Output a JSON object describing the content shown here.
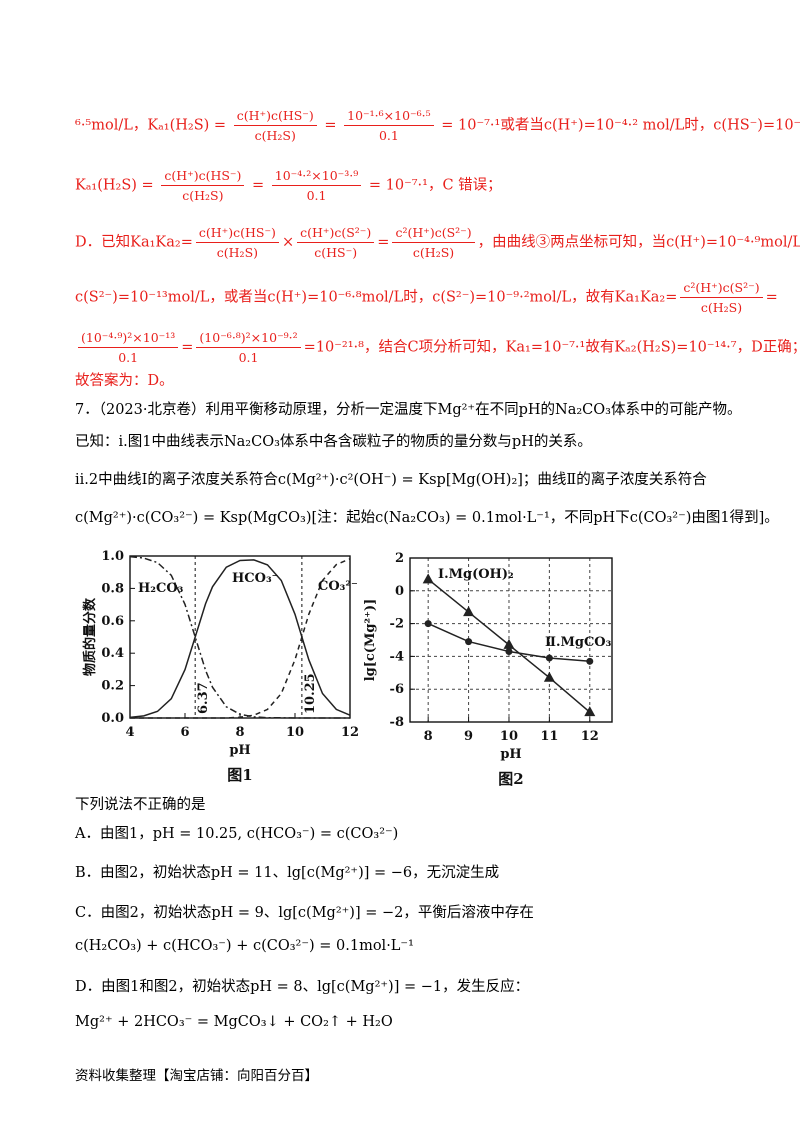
{
  "solution": [
    [
      "⁶·⁵mol/L，Kₐ₁(H₂S) = ",
      {
        "num": "c(H⁺)c(HS⁻)",
        "den": "c(H₂S)"
      },
      " = ",
      {
        "num": "10⁻¹·⁶×10⁻⁶·⁵",
        "den": "0.1"
      },
      " = 10⁻⁷·¹或者当c(H⁺)=10⁻⁴·² mol/L时，c(HS⁻)=10⁻³·⁹ mol/L，"
    ],
    [
      "Kₐ₁(H₂S) = ",
      {
        "num": "c(H⁺)c(HS⁻)",
        "den": "c(H₂S)"
      },
      " = ",
      {
        "num": "10⁻⁴·²×10⁻³·⁹",
        "den": "0.1"
      },
      " = 10⁻⁷·¹，C 错误；"
    ],
    [
      "D．已知Ka₁Ka₂=",
      {
        "num": "c(H⁺)c(HS⁻)",
        "den": "c(H₂S)"
      },
      "×",
      {
        "num": "c(H⁺)c(S²⁻)",
        "den": "c(HS⁻)"
      },
      "=",
      {
        "num": "c²(H⁺)c(S²⁻)",
        "den": "c(H₂S)"
      },
      "，由曲线③两点坐标可知，当c(H⁺)=10⁻⁴·⁹mol/L时，"
    ],
    [
      "c(S²⁻)=10⁻¹³mol/L，或者当c(H⁺)=10⁻⁶·⁸mol/L时，c(S²⁻)=10⁻⁹·²mol/L，故有Ka₁Ka₂=",
      {
        "num": "c²(H⁺)c(S²⁻)",
        "den": "c(H₂S)"
      },
      "="
    ],
    [
      {
        "num": "(10⁻⁴·⁹)²×10⁻¹³",
        "den": "0.1"
      },
      "=",
      {
        "num": "(10⁻⁶·⁸)²×10⁻⁹·²",
        "den": "0.1"
      },
      "=10⁻²¹·⁸，结合C项分析可知，Ka₁=10⁻⁷·¹故有Kₐ₂(H₂S)=10⁻¹⁴·⁷，D正确；"
    ],
    [
      "故答案为：D。"
    ]
  ],
  "question": [
    [
      "7．（2023·北京卷）利用平衡移动原理，分析一定温度下Mg²⁺在不同pH的Na₂CO₃体系中的可能产物。"
    ],
    [
      "已知：i.图1中曲线表示Na₂CO₃体系中各含碳粒子的物质的量分数与pH的关系。"
    ],
    [
      "ii.2中曲线Ⅰ的离子浓度关系符合c(Mg²⁺)·c²(OH⁻) = Ksp[Mg(OH)₂]；曲线Ⅱ的离子浓度关系符合"
    ],
    [
      "c(Mg²⁺)·c(CO₃²⁻) = Ksp(MgCO₃)[注：起始c(Na₂CO₃) = 0.1mol·L⁻¹，不同pH下c(CO₃²⁻)由图1得到]。"
    ]
  ],
  "figures": [
    {
      "type": "line",
      "caption": "图1",
      "xlabel": "pH",
      "ylabel": "物质的量分数",
      "xlim": [
        4,
        12
      ],
      "ylim": [
        0,
        1
      ],
      "xticks": [
        4,
        6,
        8,
        10,
        12
      ],
      "yticks": [
        {
          "value": 0,
          "label": "0.0"
        },
        0.2,
        0.4,
        0.6,
        0.8,
        {
          "value": 1,
          "label": "1.0"
        }
      ],
      "grid": false,
      "markers": false,
      "x": [
        4,
        4.5,
        5,
        5.5,
        6,
        6.37,
        6.75,
        7,
        7.5,
        8,
        8.5,
        9,
        9.5,
        10,
        10.25,
        10.5,
        11,
        11.5,
        12
      ],
      "series": [
        {
          "name": "H₂CO₃",
          "style": "dashdot",
          "color": "#222",
          "values": [
            0.996,
            0.987,
            0.959,
            0.881,
            0.701,
            0.5,
            0.294,
            0.19,
            0.069,
            0.023,
            0.007,
            0.002,
            0.001,
            0,
            0,
            0,
            0,
            0,
            0
          ]
        },
        {
          "name": "HCO₃⁻",
          "style": "solid",
          "color": "#222",
          "values": [
            0.004,
            0.013,
            0.041,
            0.119,
            0.299,
            0.5,
            0.706,
            0.81,
            0.931,
            0.972,
            0.976,
            0.945,
            0.849,
            0.64,
            0.5,
            0.36,
            0.151,
            0.053,
            0.017
          ]
        },
        {
          "name": "CO₃²⁻",
          "style": "dashed",
          "color": "#222",
          "values": [
            0,
            0,
            0,
            0,
            0,
            0,
            0,
            0,
            0,
            0.005,
            0.017,
            0.053,
            0.151,
            0.36,
            0.5,
            0.64,
            0.849,
            0.947,
            0.983
          ]
        }
      ],
      "annotations": [
        {
          "x": 6.37,
          "label": "6.37"
        },
        {
          "x": 10.25,
          "label": "10.25"
        }
      ]
    },
    {
      "type": "line",
      "caption": "图2",
      "xlabel": "pH",
      "ylabel": "lg[c(Mg²⁺)]",
      "xlim": [
        7.55,
        12.55
      ],
      "ylim": [
        -8,
        2
      ],
      "xticks": [
        8,
        9,
        10,
        11,
        12
      ],
      "yticks": [
        2,
        0,
        -2,
        -4,
        -6,
        -8
      ],
      "grid": true,
      "markers": true,
      "x": [
        8,
        9,
        10,
        11,
        12
      ],
      "series": [
        {
          "name": "Ⅰ.Mg(OH)₂",
          "style": "solid",
          "marker": "triangle",
          "color": "#222",
          "values": [
            0.7,
            -1.3,
            -3.3,
            -5.3,
            -7.4
          ]
        },
        {
          "name": "Ⅱ.MgCO₃",
          "style": "solid",
          "marker": "circle",
          "color": "#222",
          "values": [
            -2,
            -3.1,
            -3.7,
            -4.1,
            -4.3
          ]
        }
      ],
      "annotations": []
    }
  ],
  "options": [
    [
      "下列说法不正确的是"
    ],
    [
      "A．由图1，pH = 10.25, c(HCO₃⁻) = c(CO₃²⁻)"
    ],
    [
      "B．由图2，初始状态pH = 11、lg[c(Mg²⁺)] = −6，无沉淀生成"
    ],
    [
      "C．由图2，初始状态pH = 9、lg[c(Mg²⁺)] = −2，平衡后溶液中存在"
    ],
    [
      "c(H₂CO₃) + c(HCO₃⁻) + c(CO₃²⁻) = 0.1mol·L⁻¹"
    ],
    [
      "D．由图1和图2，初始状态pH = 8、lg[c(Mg²⁺)] = −1，发生反应："
    ],
    [
      "Mg²⁺ + 2HCO₃⁻ = MgCO₃↓ + CO₂↑ + H₂O"
    ]
  ],
  "footer": "资料收集整理【淘宝店铺：向阳百分百】"
}
